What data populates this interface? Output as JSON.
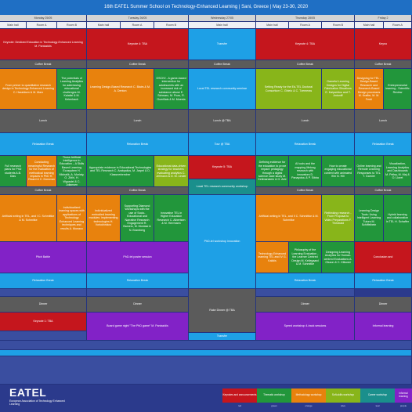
{
  "title": "16th EATEL Summer School on Technology-Enhanced Learning | Sani, Greece | May 23-30, 2020",
  "days": {
    "mon": "Monday 25/05",
    "tue": "Tuesday 26/05",
    "wed": "Wednesday 27/05",
    "thu": "Thursday 28/05",
    "fri": "Friday 2"
  },
  "rooms": {
    "main": "Main hall",
    "a": "Room A",
    "b": "Room B"
  },
  "sessions": {
    "mon_keynote": "Keynote: Desiloed Education in Technology-Enhanced Learning M. Pantazidis",
    "tue_keynote": "Keynote 4: TBA",
    "wed_transfer": "Transfer",
    "thu_keynote": "Keynote 4: TBA",
    "fri_k": "Keyno",
    "coffee": "Coffee Break",
    "lunch": "Lunch",
    "lunch_tba": "Lunch @ TBA",
    "relax": "Relaxation Break",
    "tour": "Tour @ TBA",
    "dinner": "Dinner",
    "rake": "Rake Dinner @ TBA",
    "mon_a1": "From primer to quantitative research design in Technology-Enhanced Learning C. Haraldsen & M. Marx",
    "mon_b1": "The potentials of Learning Analytics for addressing educational challenges M. Kalaitzi & M. Ketenbach",
    "tue_a1": "Learning Design-Based Research C. Blairs & M. A. Denton",
    "tue_b1": "GSCIVI - A game-based intervention for adolescents with an increased risk of substance abuse E. Schwarz, M. Pozo, R. Guerillais & M. Moesta",
    "wed_main1": "Local TEL research community seminar",
    "thu_a1": "Setting Ready for the Ed-TEL Doctoral Consortium C. Ghielo & C. Tzemeras",
    "thu_b1": "Gameful Learning Designs for Digital Fabrication Situations E. Kaiparidou and T. Antoniff",
    "fri_a1": "Designing for TEL - Design-Based Research and Research-Based Design processes M. Kraffer, M. M. Ferdi",
    "fri_b1": "Entrepreneurial learning - Scientific Review",
    "mon_m2": "Full research plans for PhD students A.B. Dias",
    "mon_a2": "Conducting meaningful Research for the evaluation of methodical learning impacts in PhD H. Ricard & C. Donovan",
    "mon_b2": "Those Artificial Intelligence in Education – A Skills Based Learning Ecosystem H. Michalik, A. Moriaty, O. Zbihl, H. Wypadel & C. Juliansen",
    "tue_m2": "Appropriate evidence in Educational Technologies and TEL Research C. Arabpalius, M. Jarpel & D. Klassnerbrecher",
    "tue_b2": "Educational data-driven strategy for teachers: evaluating analytics C. Jellmann & D. M. Linder",
    "wed_m2": "Keynote 5: TBA",
    "thu_m2": "Defining evidence for the education to prove impact: pedagogy through a digital science case study M. Kellmanstein & O. Arbi",
    "thu_a2": "AI tools and the mapping lifelong research with innovators D. Panayotou & P. Sibba",
    "thu_b2": "How to create engaging educational content with animated film N. Hill",
    "fri_a2": "Online learning and Remote Learning Responses to TEL T. Garnier",
    "fri_b2": "Visualization, Learning Analytics and Dashboards M. Pelley, M. Maj & O. Lloret",
    "wed_local": "Local TEL research community workshop",
    "mon_m3": "Artificial writing in TEL, and I C. Schmittke & M. Schmitke",
    "mon_a3": "Individualized learning spaces with applications of Technology Enhanced Learning techniques and results A. Monaco",
    "tue_a3": "Individualized embodied learning modules: implementing technologies H. Vorlokhnikov",
    "tue_b3": "Supporting Diamond Workshops with the use of Socio-Educational and Narrative Research Engagement R. Bamers, M. Montasi & N. Bramberg",
    "tue_c3": "Innovative TEL in Higher Education Research C. Albertsen & M. Herrmann",
    "thu_m3": "Artificial writing in TEL, and II C. Schmittke & M. Schmitke",
    "thu_a3": "Rethinking research - From Proposal to Video Preparations F. Theobald",
    "fri_a3": "Learning Design Tools: Using Intelligent Learning Tutors M. Schiffelbein",
    "fri_b3": "Hybrid learning and collaboration in TEL H. Schaffer",
    "mon_m4": "Pitch Battle",
    "tue_m4": "PhD-tel poster session",
    "wed_m4": "PhD-tel workshop innovation",
    "thu_m4": "Technology Enhanced learning TEL and IV G. Kalidis",
    "thu_a4": "Philosophy of the Learning Evaluation - the Learner Centred Design M. Kellegaard & M. Schmitke",
    "thu_b4": "Designing Learning Analytics for Human-centred Evaluations A. Olsson & C. Klikoski",
    "fri_m4": "Conclusion and",
    "mon_k6": "Keynote 1: TBA",
    "tue_game": "Board game night \"The PhD game\" M. Pantazidis",
    "thu_speed": "Speed workshop 4-track sessions",
    "fri_inf": "Informal learning"
  },
  "legend": [
    {
      "label": "Keynotes and announcements",
      "color": "#c5161d",
      "sub": "red"
    },
    {
      "label": "Thematic workshop",
      "color": "#22963b",
      "sub": "green"
    },
    {
      "label": "Methodology workshop",
      "color": "#e8820d",
      "sub": "orange"
    },
    {
      "label": "Soft-skills workshop",
      "color": "#88b51a",
      "sub": "olive"
    },
    {
      "label": "Career workshop",
      "color": "#1a8f8c",
      "sub": "teal"
    },
    {
      "label": "Informal learning",
      "color": "#8222c7",
      "sub": "purple"
    }
  ],
  "logo": {
    "name": "EATEL",
    "sub": "European Association of Technology Enhanced Learning"
  },
  "colors": {
    "header_bar": "#1f6fc4",
    "background": "#2b3a8c",
    "break_blue": "#1ea0e6",
    "lunch_gray": "#5b5b5b"
  }
}
